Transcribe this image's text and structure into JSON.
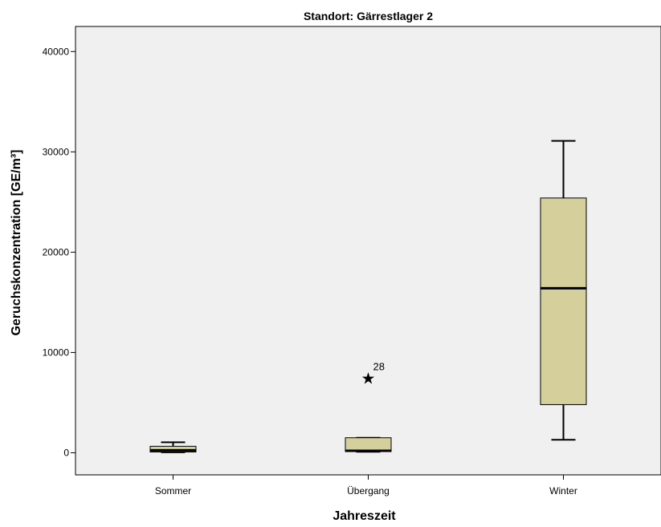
{
  "chart_data": {
    "type": "boxplot",
    "title": "Standort: Gärrestlager 2",
    "xlabel": "Jahreszeit",
    "ylabel": "Geruchskonzentration [GE/m³]",
    "ylim": [
      -2200,
      42500
    ],
    "yticks": [
      0,
      10000,
      20000,
      30000,
      40000
    ],
    "categories": [
      "Sommer",
      "Übergang",
      "Winter"
    ],
    "boxes": [
      {
        "category": "Sommer",
        "whisker_low": 50,
        "q1": 80,
        "median": 250,
        "q3": 650,
        "whisker_high": 1050,
        "outliers": []
      },
      {
        "category": "Übergang",
        "whisker_low": 100,
        "q1": 120,
        "median": 200,
        "q3": 1500,
        "whisker_high": 1500,
        "outliers": [
          {
            "value": 7500,
            "label": "28"
          }
        ]
      },
      {
        "category": "Winter",
        "whisker_low": 1300,
        "q1": 4800,
        "median": 16400,
        "q3": 25400,
        "whisker_high": 31100,
        "outliers": []
      }
    ],
    "colors": {
      "box_fill": "#d4cf9b",
      "plot_bg": "#f0f0f0",
      "stroke": "#000000"
    },
    "grid": false,
    "legend": "none"
  }
}
